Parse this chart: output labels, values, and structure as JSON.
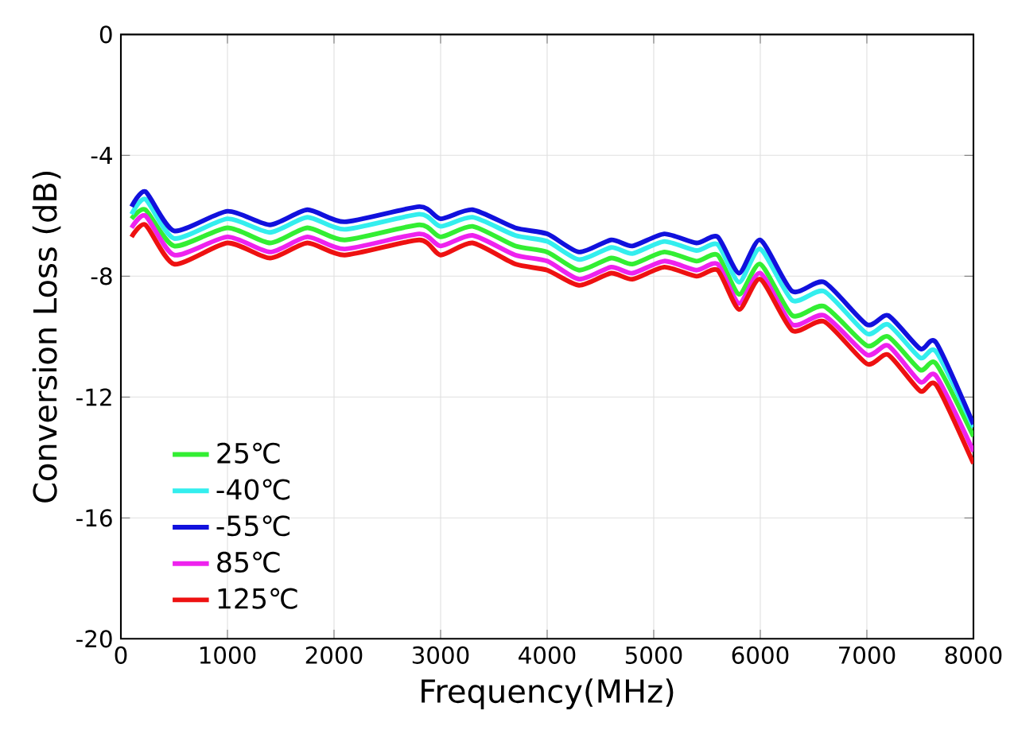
{
  "chart_data": {
    "type": "line",
    "xlabel": "Frequency(MHz)",
    "ylabel": "Conversion Loss (dB)",
    "x": [
      100,
      230,
      500,
      1000,
      1400,
      1750,
      2100,
      2800,
      3000,
      3300,
      3700,
      4000,
      4300,
      4600,
      4800,
      5100,
      5400,
      5600,
      5800,
      6000,
      6300,
      6600,
      7000,
      7200,
      7500,
      7650,
      8000
    ],
    "series": [
      {
        "name": "25℃",
        "color": "#33ee33",
        "values": [
          -6.1,
          -5.8,
          -7.0,
          -6.4,
          -6.9,
          -6.4,
          -6.8,
          -6.3,
          -6.7,
          -6.35,
          -7.0,
          -7.2,
          -7.8,
          -7.4,
          -7.6,
          -7.2,
          -7.5,
          -7.3,
          -8.6,
          -7.6,
          -9.3,
          -9.0,
          -10.3,
          -10.0,
          -11.1,
          -10.9,
          -13.3
        ]
      },
      {
        "name": "-40℃",
        "color": "#33eeee",
        "values": [
          -5.95,
          -5.45,
          -6.75,
          -6.1,
          -6.55,
          -6.05,
          -6.45,
          -5.95,
          -6.35,
          -6.05,
          -6.65,
          -6.85,
          -7.45,
          -7.05,
          -7.25,
          -6.85,
          -7.15,
          -6.95,
          -8.2,
          -7.1,
          -8.8,
          -8.5,
          -9.9,
          -9.6,
          -10.7,
          -10.5,
          -13.0
        ]
      },
      {
        "name": "-55℃",
        "color": "#1111dd",
        "values": [
          -5.7,
          -5.2,
          -6.5,
          -5.85,
          -6.3,
          -5.8,
          -6.2,
          -5.7,
          -6.1,
          -5.8,
          -6.4,
          -6.6,
          -7.2,
          -6.8,
          -7.0,
          -6.6,
          -6.9,
          -6.7,
          -7.9,
          -6.8,
          -8.5,
          -8.2,
          -9.6,
          -9.3,
          -10.4,
          -10.2,
          -12.9
        ]
      },
      {
        "name": "85℃",
        "color": "#ee22ee",
        "values": [
          -6.4,
          -6.0,
          -7.3,
          -6.7,
          -7.2,
          -6.7,
          -7.1,
          -6.6,
          -7.0,
          -6.65,
          -7.3,
          -7.5,
          -8.1,
          -7.7,
          -7.9,
          -7.5,
          -7.8,
          -7.6,
          -8.9,
          -7.9,
          -9.6,
          -9.3,
          -10.6,
          -10.3,
          -11.5,
          -11.3,
          -13.8
        ]
      },
      {
        "name": "125℃",
        "color": "#ee1111",
        "values": [
          -6.7,
          -6.3,
          -7.6,
          -6.9,
          -7.4,
          -6.9,
          -7.3,
          -6.8,
          -7.3,
          -6.9,
          -7.6,
          -7.8,
          -8.3,
          -7.9,
          -8.1,
          -7.7,
          -8.0,
          -7.8,
          -9.1,
          -8.1,
          -9.8,
          -9.5,
          -10.9,
          -10.6,
          -11.8,
          -11.6,
          -14.2
        ]
      }
    ],
    "xlim": [
      0,
      8000
    ],
    "xticks": [
      0,
      1000,
      2000,
      3000,
      4000,
      5000,
      6000,
      7000,
      8000
    ],
    "ylim": [
      -20,
      0
    ],
    "yticks": [
      -20,
      -16,
      -12,
      -8,
      -4,
      0
    ],
    "grid": true,
    "legend": "bottom left",
    "line_style": "solid",
    "marker": "none"
  }
}
